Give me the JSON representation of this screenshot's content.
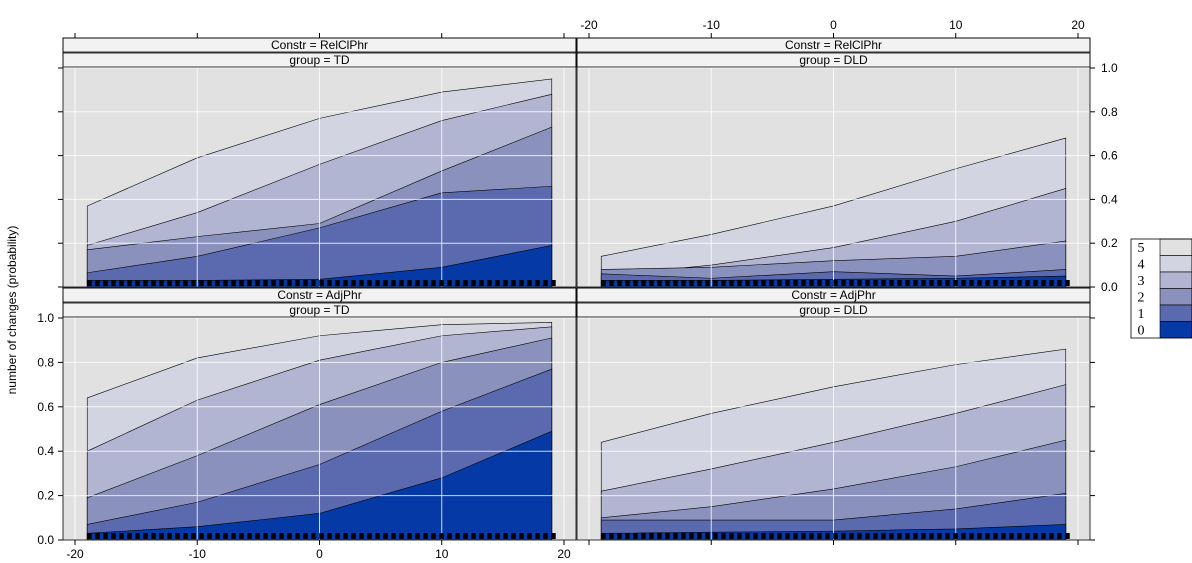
{
  "chart_data": {
    "type": "area",
    "ylabel": "number of changes (probability)",
    "xlim": [
      -20,
      20
    ],
    "ylim": [
      0,
      1
    ],
    "x_ticks": [
      -20,
      -10,
      0,
      10,
      20
    ],
    "y_ticks": [
      0,
      0.2,
      0.4,
      0.6,
      0.8,
      1
    ],
    "y_tick_labels": [
      "0.0",
      "0.2",
      "0.4",
      "0.6",
      "0.8",
      "1.0"
    ],
    "x": [
      -19,
      -10,
      0,
      10,
      19
    ],
    "grid": true,
    "legend_position": "right",
    "legend": [
      "5",
      "4",
      "3",
      "2",
      "1",
      "0"
    ],
    "colors": {
      "panel_bg": "#e1e1e1",
      "strip_bg": "#f2f2f2",
      "grid": "#ffffff",
      "band_0": "#0539a6",
      "band_1": "#5b69ae",
      "band_2": "#8a91bd",
      "band_3": "#b2b5d1",
      "band_4": "#d3d4e1",
      "band_5": "#e1e1e1"
    },
    "panels": [
      {
        "constr": "Constr = RelClPhr",
        "group": "group = TD",
        "cumulative": [
          [
            0.03,
            0.03,
            0.035,
            0.09,
            0.19
          ],
          [
            0.065,
            0.14,
            0.27,
            0.43,
            0.46
          ],
          [
            0.17,
            0.23,
            0.29,
            0.53,
            0.73
          ],
          [
            0.19,
            0.34,
            0.56,
            0.76,
            0.88
          ],
          [
            0.37,
            0.59,
            0.77,
            0.89,
            0.95
          ]
        ]
      },
      {
        "constr": "Constr = RelClPhr",
        "group": "group = DLD",
        "cumulative": [
          [
            0.03,
            0.03,
            0.035,
            0.04,
            0.05
          ],
          [
            0.06,
            0.04,
            0.07,
            0.05,
            0.08
          ],
          [
            0.08,
            0.09,
            0.12,
            0.14,
            0.21
          ],
          [
            0.05,
            0.1,
            0.18,
            0.3,
            0.45
          ],
          [
            0.14,
            0.24,
            0.37,
            0.54,
            0.68
          ]
        ]
      },
      {
        "constr": "Constr = AdjPhr",
        "group": "group = TD",
        "cumulative": [
          [
            0.03,
            0.06,
            0.12,
            0.28,
            0.49
          ],
          [
            0.07,
            0.17,
            0.34,
            0.58,
            0.77
          ],
          [
            0.19,
            0.38,
            0.61,
            0.8,
            0.91
          ],
          [
            0.4,
            0.63,
            0.81,
            0.92,
            0.96
          ],
          [
            0.64,
            0.82,
            0.92,
            0.97,
            0.98
          ]
        ]
      },
      {
        "constr": "Constr = AdjPhr",
        "group": "group = DLD",
        "cumulative": [
          [
            0.03,
            0.035,
            0.04,
            0.05,
            0.07
          ],
          [
            0.09,
            0.09,
            0.09,
            0.14,
            0.21
          ],
          [
            0.1,
            0.15,
            0.23,
            0.33,
            0.45
          ],
          [
            0.22,
            0.32,
            0.44,
            0.57,
            0.7
          ],
          [
            0.44,
            0.57,
            0.69,
            0.79,
            0.86
          ]
        ]
      }
    ]
  }
}
